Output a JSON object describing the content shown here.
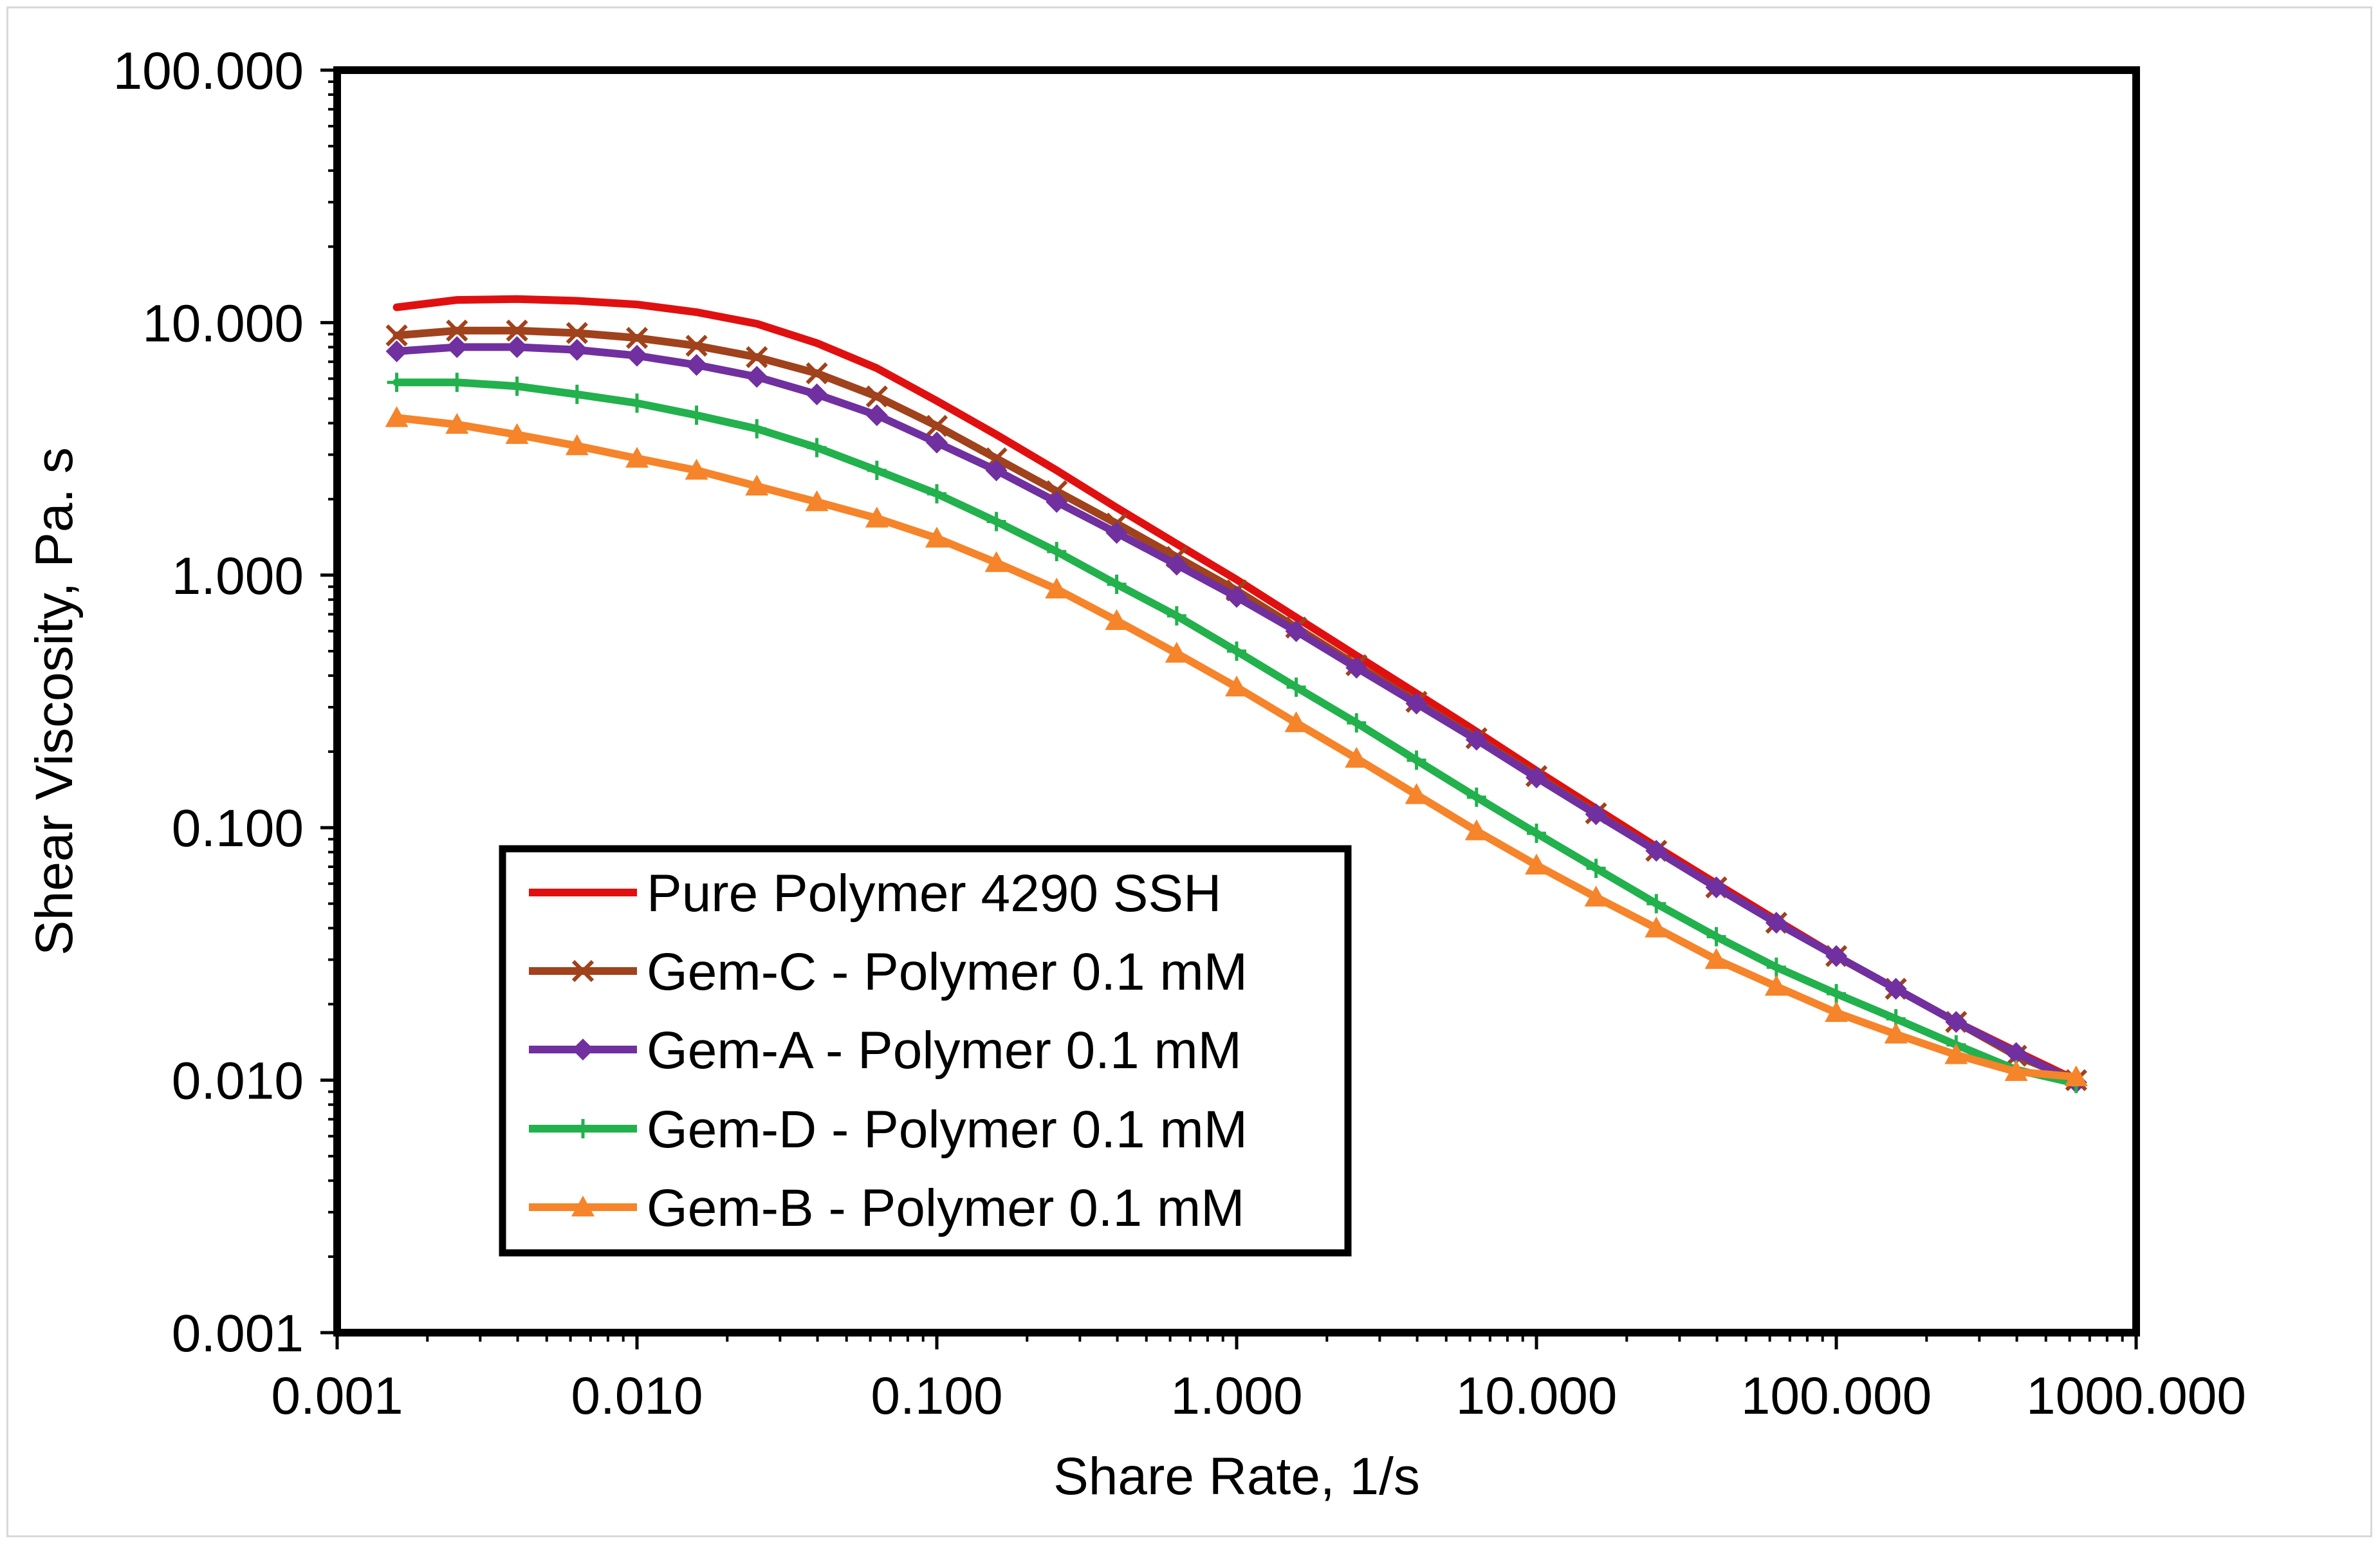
{
  "chart_data": {
    "type": "line",
    "x_scale": "log",
    "y_scale": "log",
    "xlabel": "Share Rate, 1/s",
    "ylabel": "Shear Viscosity, Pa. s",
    "xlim": [
      0.001,
      1000
    ],
    "ylim": [
      0.001,
      100
    ],
    "x_ticks": [
      0.001,
      0.01,
      0.1,
      1,
      10,
      100,
      1000
    ],
    "x_tick_labels": [
      "0.001",
      "0.010",
      "0.100",
      "1.000",
      "10.000",
      "100.000",
      "1000.000"
    ],
    "y_ticks": [
      0.001,
      0.01,
      0.1,
      1,
      10,
      100
    ],
    "y_tick_labels": [
      "0.001",
      "0.010",
      "0.100",
      "1.000",
      "10.000",
      "100.000"
    ],
    "grid": false,
    "legend_position": "lower-left",
    "x": [
      0.00158,
      0.00251,
      0.00398,
      0.00631,
      0.01,
      0.0158,
      0.0251,
      0.0398,
      0.0631,
      0.1,
      0.158,
      0.251,
      0.398,
      0.631,
      1,
      1.58,
      2.51,
      3.98,
      6.31,
      10,
      15.8,
      25.1,
      39.8,
      63.1,
      100,
      158,
      251,
      398,
      631
    ],
    "series": [
      {
        "name": "Pure Polymer 4290 SSH",
        "color": "#e01010",
        "marker": "none",
        "values": [
          11.5,
          12.3,
          12.4,
          12.2,
          11.8,
          11.0,
          9.9,
          8.3,
          6.6,
          4.9,
          3.6,
          2.6,
          1.85,
          1.33,
          0.96,
          0.68,
          0.48,
          0.34,
          0.24,
          0.168,
          0.119,
          0.084,
          0.06,
          0.043,
          0.031,
          0.023,
          0.017,
          0.013,
          0.01
        ]
      },
      {
        "name": "Gem-C - Polymer 0.1 mM",
        "color": "#a0421c",
        "marker": "x",
        "values": [
          8.9,
          9.3,
          9.3,
          9.1,
          8.7,
          8.1,
          7.3,
          6.3,
          5.1,
          3.9,
          2.9,
          2.15,
          1.6,
          1.18,
          0.87,
          0.62,
          0.44,
          0.315,
          0.226,
          0.16,
          0.114,
          0.081,
          0.058,
          0.042,
          0.031,
          0.023,
          0.017,
          0.0125,
          0.01
        ]
      },
      {
        "name": "Gem-A - Polymer 0.1 mM",
        "color": "#7030a0",
        "marker": "diamond",
        "values": [
          7.7,
          8.0,
          8.0,
          7.8,
          7.4,
          6.8,
          6.1,
          5.2,
          4.3,
          3.35,
          2.6,
          1.95,
          1.47,
          1.1,
          0.82,
          0.6,
          0.43,
          0.31,
          0.223,
          0.158,
          0.113,
          0.081,
          0.058,
          0.042,
          0.031,
          0.023,
          0.017,
          0.0128,
          0.0098
        ]
      },
      {
        "name": "Gem-D - Polymer 0.1 mM",
        "color": "#22b14c",
        "marker": "plus",
        "values": [
          5.8,
          5.8,
          5.6,
          5.2,
          4.8,
          4.3,
          3.8,
          3.2,
          2.6,
          2.1,
          1.63,
          1.24,
          0.92,
          0.69,
          0.5,
          0.36,
          0.26,
          0.185,
          0.132,
          0.095,
          0.069,
          0.05,
          0.037,
          0.028,
          0.022,
          0.0175,
          0.0138,
          0.011,
          0.0097
        ]
      },
      {
        "name": "Gem-B - Polymer 0.1 mM",
        "color": "#f5842a",
        "marker": "triangle",
        "values": [
          4.2,
          3.95,
          3.6,
          3.25,
          2.9,
          2.6,
          2.25,
          1.95,
          1.68,
          1.4,
          1.12,
          0.88,
          0.66,
          0.49,
          0.36,
          0.26,
          0.188,
          0.135,
          0.097,
          0.071,
          0.053,
          0.04,
          0.03,
          0.0235,
          0.0185,
          0.0152,
          0.0126,
          0.0108,
          0.0103
        ]
      }
    ]
  }
}
